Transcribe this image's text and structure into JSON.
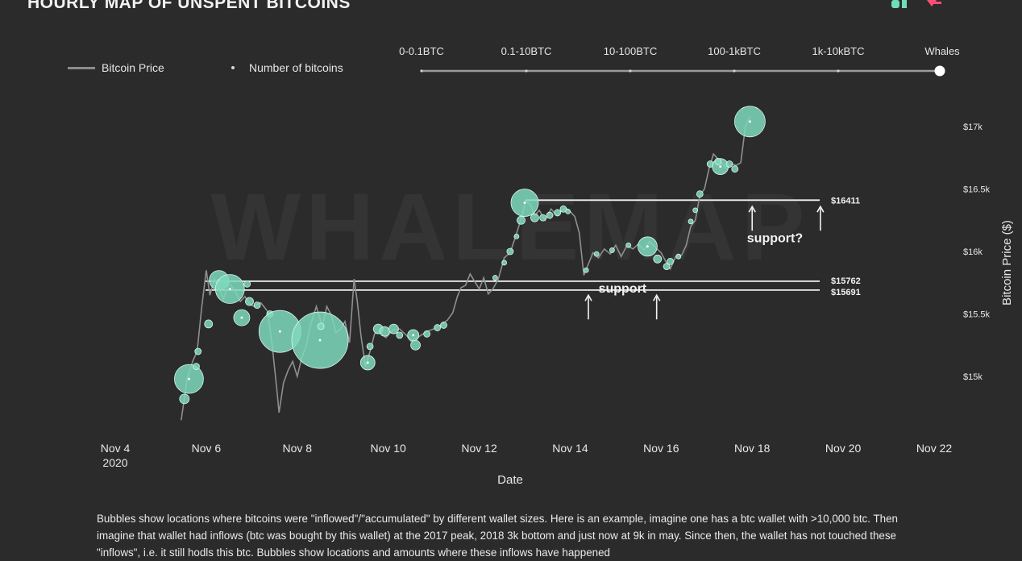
{
  "title": "HOURLY MAP OF UNSPENT BITCOINS",
  "legend": {
    "price": "Bitcoin Price",
    "bubbles": "Number of bitcoins"
  },
  "size_scale": {
    "labels": [
      "0-0.1BTC",
      "0.1-10BTC",
      "10-100BTC",
      "100-1kBTC",
      "1k-10kBTC",
      "Whales"
    ],
    "selected": "Whales"
  },
  "watermark": "WHALEMAP",
  "colors": {
    "background": "#2b2b2b",
    "bubble": "#7fd9bd",
    "price_line": "#8c8c8c",
    "logo_green": "#6ee0b8",
    "logo_pink": "#ff4d7a"
  },
  "caption": "Bubbles show locations where bitcoins were \"inflowed\"/\"accumulated\" by different wallet sizes. Here is an example, imagine one has a btc wallet with >10,000 btc. Then imagine that wallet had inflows (btc was bought by this wallet) at the 2017 peak, 2018 3k bottom and just now at 9k in may. Since then, the wallet has not touched these \"inflows\", i.e. it still hodls this btc. Bubbles show locations and amounts where these inflows have happened",
  "chart_data": {
    "type": "scatter",
    "xlabel": "Date",
    "ylabel": "Bitcoin Price ($)",
    "x_ticks": [
      {
        "day": 4,
        "label": "Nov 4",
        "sub": "2020"
      },
      {
        "day": 6,
        "label": "Nov 6"
      },
      {
        "day": 8,
        "label": "Nov 8"
      },
      {
        "day": 10,
        "label": "Nov 10"
      },
      {
        "day": 12,
        "label": "Nov 12"
      },
      {
        "day": 14,
        "label": "Nov 14"
      },
      {
        "day": 16,
        "label": "Nov 16"
      },
      {
        "day": 18,
        "label": "Nov 18"
      },
      {
        "day": 20,
        "label": "Nov 20"
      },
      {
        "day": 22,
        "label": "Nov 22"
      }
    ],
    "y_ticks": [
      {
        "value": 15000,
        "label": "$15k"
      },
      {
        "value": 15500,
        "label": "$15.5k"
      },
      {
        "value": 16000,
        "label": "$16k"
      },
      {
        "value": 16500,
        "label": "$16.5k"
      },
      {
        "value": 17000,
        "label": "$17k"
      }
    ],
    "xlim": [
      4,
      22
    ],
    "ylim": [
      14550,
      17150
    ],
    "grid": false,
    "levels": [
      {
        "value": 16411,
        "label": "$16411"
      },
      {
        "value": 15762,
        "label": "$15762"
      },
      {
        "value": 15691,
        "label": "$15691"
      }
    ],
    "annotations": [
      {
        "text": "support",
        "day": 15.15,
        "price": 15670,
        "arrows_at": [
          14.4,
          15.9
        ],
        "arrows_price": 15650
      },
      {
        "text": "support?",
        "day": 18.5,
        "price": 16075,
        "arrows_at": [
          18.0,
          19.5
        ],
        "arrows_price": 16360
      }
    ],
    "price_series": [
      [
        5.45,
        14650
      ],
      [
        5.58,
        14980
      ],
      [
        5.7,
        15120
      ],
      [
        5.8,
        15200
      ],
      [
        5.9,
        15550
      ],
      [
        6.0,
        15850
      ],
      [
        6.08,
        15650
      ],
      [
        6.18,
        15780
      ],
      [
        6.28,
        15700
      ],
      [
        6.38,
        15620
      ],
      [
        6.5,
        15750
      ],
      [
        6.62,
        15690
      ],
      [
        6.75,
        15600
      ],
      [
        6.85,
        15640
      ],
      [
        6.95,
        15580
      ],
      [
        7.05,
        15560
      ],
      [
        7.2,
        15590
      ],
      [
        7.35,
        15520
      ],
      [
        7.45,
        15250
      ],
      [
        7.55,
        14900
      ],
      [
        7.6,
        14710
      ],
      [
        7.7,
        14950
      ],
      [
        7.8,
        15050
      ],
      [
        7.9,
        15120
      ],
      [
        8.0,
        15000
      ],
      [
        8.1,
        15150
      ],
      [
        8.2,
        15250
      ],
      [
        8.3,
        15420
      ],
      [
        8.42,
        15560
      ],
      [
        8.55,
        15400
      ],
      [
        8.65,
        15560
      ],
      [
        8.75,
        15490
      ],
      [
        8.85,
        15350
      ],
      [
        8.95,
        15380
      ],
      [
        9.05,
        15440
      ],
      [
        9.15,
        15270
      ],
      [
        9.25,
        15780
      ],
      [
        9.32,
        15600
      ],
      [
        9.4,
        15330
      ],
      [
        9.5,
        15080
      ],
      [
        9.6,
        15200
      ],
      [
        9.7,
        15340
      ],
      [
        9.8,
        15360
      ],
      [
        9.95,
        15310
      ],
      [
        10.1,
        15370
      ],
      [
        10.25,
        15380
      ],
      [
        10.4,
        15330
      ],
      [
        10.5,
        15280
      ],
      [
        10.6,
        15300
      ],
      [
        10.72,
        15330
      ],
      [
        10.85,
        15360
      ],
      [
        11.0,
        15380
      ],
      [
        11.15,
        15410
      ],
      [
        11.3,
        15450
      ],
      [
        11.42,
        15510
      ],
      [
        11.52,
        15640
      ],
      [
        11.6,
        15710
      ],
      [
        11.7,
        15730
      ],
      [
        11.8,
        15820
      ],
      [
        11.9,
        15760
      ],
      [
        12.0,
        15700
      ],
      [
        12.1,
        15790
      ],
      [
        12.2,
        15660
      ],
      [
        12.3,
        15700
      ],
      [
        12.42,
        15780
      ],
      [
        12.55,
        15950
      ],
      [
        12.68,
        15990
      ],
      [
        12.8,
        16120
      ],
      [
        12.92,
        16260
      ],
      [
        13.02,
        16400
      ],
      [
        13.12,
        16380
      ],
      [
        13.22,
        16290
      ],
      [
        13.32,
        16330
      ],
      [
        13.45,
        16250
      ],
      [
        13.58,
        16340
      ],
      [
        13.7,
        16290
      ],
      [
        13.8,
        16320
      ],
      [
        13.9,
        16350
      ],
      [
        14.0,
        16320
      ],
      [
        14.1,
        16280
      ],
      [
        14.2,
        16150
      ],
      [
        14.3,
        15810
      ],
      [
        14.4,
        15900
      ],
      [
        14.5,
        15990
      ],
      [
        14.62,
        15950
      ],
      [
        14.75,
        16020
      ],
      [
        14.88,
        15980
      ],
      [
        15.0,
        16050
      ],
      [
        15.12,
        15960
      ],
      [
        15.25,
        16050
      ],
      [
        15.38,
        16020
      ],
      [
        15.5,
        16060
      ],
      [
        15.62,
        16010
      ],
      [
        15.75,
        16080
      ],
      [
        15.88,
        16030
      ],
      [
        16.0,
        15990
      ],
      [
        16.1,
        15920
      ],
      [
        16.2,
        15860
      ],
      [
        16.32,
        15960
      ],
      [
        16.45,
        15970
      ],
      [
        16.55,
        16050
      ],
      [
        16.65,
        16200
      ],
      [
        16.75,
        16250
      ],
      [
        16.85,
        16450
      ],
      [
        16.95,
        16500
      ],
      [
        17.05,
        16660
      ],
      [
        17.15,
        16780
      ],
      [
        17.25,
        16740
      ],
      [
        17.35,
        16700
      ],
      [
        17.45,
        16660
      ],
      [
        17.55,
        16700
      ],
      [
        17.65,
        16690
      ],
      [
        17.75,
        16710
      ],
      [
        17.85,
        17000
      ],
      [
        17.95,
        17080
      ]
    ],
    "bubbles": [
      {
        "day": 5.62,
        "price": 14980,
        "size": 18
      },
      {
        "day": 5.52,
        "price": 14820,
        "size": 6
      },
      {
        "day": 5.78,
        "price": 15080,
        "size": 4
      },
      {
        "day": 5.82,
        "price": 15200,
        "size": 4
      },
      {
        "day": 6.05,
        "price": 15420,
        "size": 5
      },
      {
        "day": 6.28,
        "price": 15770,
        "size": 12
      },
      {
        "day": 6.52,
        "price": 15700,
        "size": 18
      },
      {
        "day": 6.78,
        "price": 15470,
        "size": 10
      },
      {
        "day": 6.9,
        "price": 15740,
        "size": 4
      },
      {
        "day": 6.95,
        "price": 15600,
        "size": 5
      },
      {
        "day": 7.12,
        "price": 15570,
        "size": 4
      },
      {
        "day": 7.4,
        "price": 15500,
        "size": 4
      },
      {
        "day": 7.62,
        "price": 15360,
        "size": 26
      },
      {
        "day": 8.5,
        "price": 15290,
        "size": 35
      },
      {
        "day": 8.52,
        "price": 15400,
        "size": 4
      },
      {
        "day": 9.55,
        "price": 15110,
        "size": 9
      },
      {
        "day": 9.6,
        "price": 15240,
        "size": 4
      },
      {
        "day": 9.78,
        "price": 15380,
        "size": 6
      },
      {
        "day": 9.92,
        "price": 15360,
        "size": 6
      },
      {
        "day": 10.12,
        "price": 15380,
        "size": 6
      },
      {
        "day": 10.25,
        "price": 15330,
        "size": 4
      },
      {
        "day": 10.55,
        "price": 15330,
        "size": 7
      },
      {
        "day": 10.6,
        "price": 15250,
        "size": 6
      },
      {
        "day": 10.85,
        "price": 15340,
        "size": 4
      },
      {
        "day": 11.08,
        "price": 15390,
        "size": 4
      },
      {
        "day": 11.22,
        "price": 15410,
        "size": 4
      },
      {
        "day": 12.35,
        "price": 15790,
        "size": 3
      },
      {
        "day": 12.55,
        "price": 15910,
        "size": 3
      },
      {
        "day": 12.68,
        "price": 16000,
        "size": 4
      },
      {
        "day": 12.82,
        "price": 16120,
        "size": 3
      },
      {
        "day": 13.0,
        "price": 16390,
        "size": 17
      },
      {
        "day": 12.92,
        "price": 16250,
        "size": 5
      },
      {
        "day": 13.22,
        "price": 16270,
        "size": 5
      },
      {
        "day": 13.4,
        "price": 16270,
        "size": 4
      },
      {
        "day": 13.55,
        "price": 16290,
        "size": 4
      },
      {
        "day": 13.72,
        "price": 16310,
        "size": 4
      },
      {
        "day": 13.85,
        "price": 16340,
        "size": 4
      },
      {
        "day": 13.95,
        "price": 16320,
        "size": 3
      },
      {
        "day": 14.35,
        "price": 15850,
        "size": 3
      },
      {
        "day": 14.58,
        "price": 15980,
        "size": 3
      },
      {
        "day": 14.92,
        "price": 16010,
        "size": 3
      },
      {
        "day": 15.28,
        "price": 16050,
        "size": 3
      },
      {
        "day": 15.7,
        "price": 16040,
        "size": 12
      },
      {
        "day": 15.92,
        "price": 15940,
        "size": 5
      },
      {
        "day": 16.12,
        "price": 15880,
        "size": 4
      },
      {
        "day": 16.2,
        "price": 15920,
        "size": 4
      },
      {
        "day": 16.38,
        "price": 15960,
        "size": 3
      },
      {
        "day": 16.65,
        "price": 16240,
        "size": 3
      },
      {
        "day": 16.75,
        "price": 16330,
        "size": 3
      },
      {
        "day": 16.85,
        "price": 16460,
        "size": 4
      },
      {
        "day": 17.08,
        "price": 16700,
        "size": 4
      },
      {
        "day": 17.3,
        "price": 16680,
        "size": 10
      },
      {
        "day": 17.25,
        "price": 16720,
        "size": 4
      },
      {
        "day": 17.5,
        "price": 16700,
        "size": 4
      },
      {
        "day": 17.62,
        "price": 16660,
        "size": 4
      },
      {
        "day": 17.95,
        "price": 17040,
        "size": 19
      }
    ]
  }
}
